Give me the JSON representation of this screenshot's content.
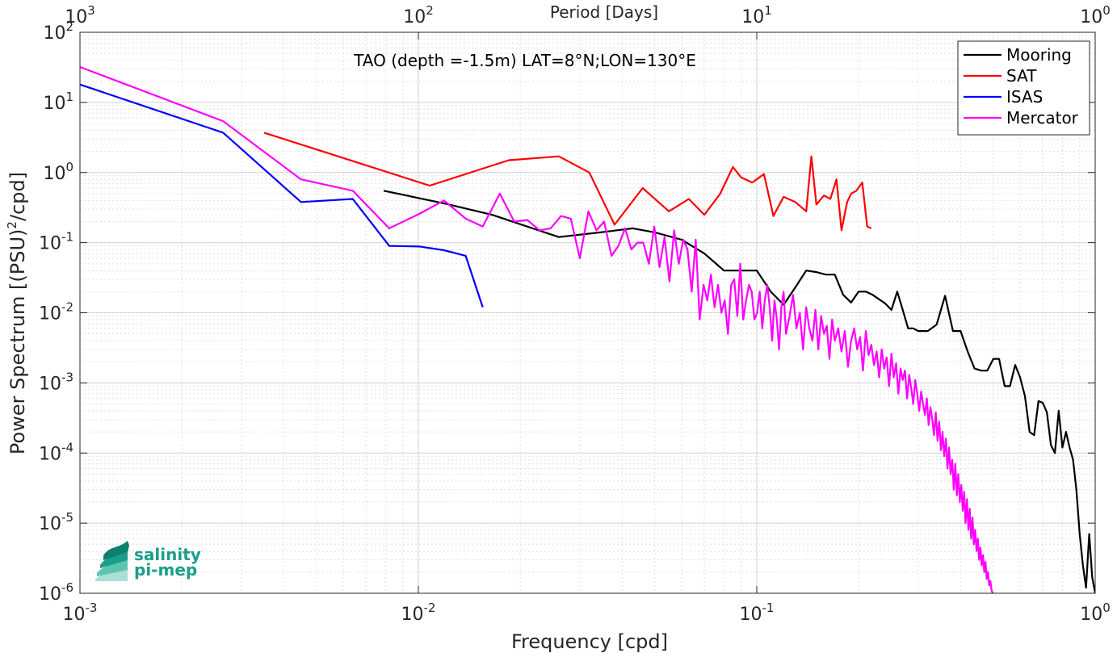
{
  "chart_data": {
    "type": "line",
    "annotation": "TAO (depth =-1.5m) LAT=8°N;LON=130°E",
    "xlabel": "Frequency [cpd]",
    "ylabel": "Power Spectrum [(PSU)²/cpd]",
    "top_xlabel": "Period [Days]",
    "xscale": "log",
    "yscale": "log",
    "xlim": [
      0.001,
      1
    ],
    "ylim": [
      1e-06,
      100
    ],
    "top_xlim": [
      1000,
      1
    ],
    "grid": true,
    "legend_position": "top-right",
    "x_ticks": [
      0.001,
      0.01,
      0.1,
      1
    ],
    "x_tick_labels": [
      {
        "base": "10",
        "exp": "-3"
      },
      {
        "base": "10",
        "exp": "-2"
      },
      {
        "base": "10",
        "exp": "-1"
      },
      {
        "base": "10",
        "exp": "0"
      }
    ],
    "top_ticks": [
      1000,
      100,
      10,
      1
    ],
    "top_tick_labels": [
      {
        "base": "10",
        "exp": "3"
      },
      {
        "base": "10",
        "exp": "2"
      },
      {
        "base": "10",
        "exp": "1"
      },
      {
        "base": "10",
        "exp": "0"
      }
    ],
    "y_ticks": [
      100,
      10,
      1,
      0.1,
      0.01,
      0.001,
      0.0001,
      1e-05,
      1e-06
    ],
    "y_tick_labels": [
      {
        "base": "10",
        "exp": "2"
      },
      {
        "base": "10",
        "exp": "1"
      },
      {
        "base": "10",
        "exp": "0"
      },
      {
        "base": "10",
        "exp": "-1"
      },
      {
        "base": "10",
        "exp": "-2"
      },
      {
        "base": "10",
        "exp": "-3"
      },
      {
        "base": "10",
        "exp": "-4"
      },
      {
        "base": "10",
        "exp": "-5"
      },
      {
        "base": "10",
        "exp": "-6"
      }
    ],
    "series": [
      {
        "name": "Mooring",
        "color": "#000000",
        "x": [
          0.0079,
          0.012,
          0.0165,
          0.026,
          0.0345,
          0.043,
          0.05,
          0.06,
          0.07,
          0.08,
          0.09,
          0.1,
          0.11,
          0.12,
          0.13,
          0.14,
          0.15,
          0.16,
          0.17,
          0.18,
          0.19,
          0.2,
          0.21,
          0.22,
          0.24,
          0.25,
          0.26,
          0.27,
          0.28,
          0.29,
          0.3,
          0.31,
          0.32,
          0.34,
          0.36,
          0.38,
          0.4,
          0.42,
          0.44,
          0.46,
          0.48,
          0.5,
          0.52,
          0.54,
          0.56,
          0.58,
          0.6,
          0.62,
          0.64,
          0.66,
          0.68,
          0.7,
          0.72,
          0.74,
          0.76,
          0.78,
          0.8,
          0.82,
          0.84,
          0.86,
          0.88,
          0.9,
          0.92,
          0.94,
          0.96,
          0.98,
          1.0
        ],
        "values": [
          0.55,
          0.36,
          0.25,
          0.12,
          0.14,
          0.16,
          0.14,
          0.11,
          0.07,
          0.04,
          0.04,
          0.04,
          0.02,
          0.013,
          0.023,
          0.04,
          0.038,
          0.035,
          0.035,
          0.018,
          0.014,
          0.02,
          0.02,
          0.018,
          0.0135,
          0.011,
          0.02,
          0.011,
          0.006,
          0.006,
          0.0055,
          0.0055,
          0.0055,
          0.0068,
          0.0175,
          0.0055,
          0.0055,
          0.0028,
          0.0016,
          0.0015,
          0.0015,
          0.0022,
          0.0022,
          0.0009,
          0.0009,
          0.0018,
          0.0012,
          0.00065,
          0.0002,
          0.00018,
          0.00055,
          0.00052,
          0.00038,
          0.00013,
          0.0001,
          0.0004,
          0.00012,
          0.0002,
          0.00012,
          8e-05,
          3e-05,
          7e-06,
          2.5e-06,
          1.2e-06,
          7e-06,
          1.7e-06,
          1e-06
        ]
      },
      {
        "name": "SAT",
        "color": "#ff0000",
        "x": [
          0.0035,
          0.0108,
          0.0185,
          0.026,
          0.032,
          0.038,
          0.046,
          0.055,
          0.063,
          0.07,
          0.078,
          0.085,
          0.09,
          0.097,
          0.105,
          0.112,
          0.12,
          0.13,
          0.14,
          0.145,
          0.15,
          0.158,
          0.165,
          0.172,
          0.178,
          0.185,
          0.19,
          0.197,
          0.205,
          0.212,
          0.218
        ],
        "values": [
          3.7,
          0.65,
          1.5,
          1.7,
          1.0,
          0.18,
          0.6,
          0.28,
          0.42,
          0.25,
          0.5,
          1.2,
          0.85,
          0.72,
          0.95,
          0.24,
          0.45,
          0.38,
          0.28,
          1.7,
          0.35,
          0.47,
          0.42,
          0.8,
          0.15,
          0.38,
          0.5,
          0.55,
          0.72,
          0.17,
          0.16
        ]
      },
      {
        "name": "ISAS",
        "color": "#0000ff",
        "x": [
          0.001,
          0.00265,
          0.0045,
          0.0064,
          0.0082,
          0.0101,
          0.0119,
          0.0138,
          0.0155
        ],
        "values": [
          18,
          3.7,
          0.38,
          0.42,
          0.09,
          0.088,
          0.078,
          0.065,
          0.012
        ]
      },
      {
        "name": "Mercator",
        "color": "#ff00ff",
        "x": [
          0.001,
          0.00265,
          0.0045,
          0.0064,
          0.0082,
          0.0101,
          0.0119,
          0.0138,
          0.0155,
          0.0174,
          0.0192,
          0.021,
          0.0228,
          0.0246,
          0.0264,
          0.0282,
          0.03,
          0.0318,
          0.0336,
          0.0354,
          0.0372,
          0.039,
          0.0408,
          0.0426,
          0.0444,
          0.0462,
          0.048,
          0.0498,
          0.0516,
          0.0534,
          0.0552,
          0.057,
          0.0588,
          0.0606,
          0.0624,
          0.0642,
          0.066,
          0.0678,
          0.0696,
          0.0714,
          0.0732,
          0.075,
          0.0768,
          0.0786,
          0.0804,
          0.0822,
          0.084,
          0.0858,
          0.0876,
          0.0894,
          0.0912,
          0.093,
          0.0948,
          0.0966,
          0.0984,
          0.1002,
          0.102,
          0.1038,
          0.1056,
          0.1074,
          0.1092,
          0.111,
          0.1128,
          0.1146,
          0.1164,
          0.1182,
          0.12,
          0.122,
          0.125,
          0.128,
          0.131,
          0.134,
          0.137,
          0.14,
          0.143,
          0.146,
          0.149,
          0.152,
          0.155,
          0.158,
          0.161,
          0.164,
          0.167,
          0.17,
          0.174,
          0.178,
          0.182,
          0.186,
          0.19,
          0.194,
          0.198,
          0.202,
          0.206,
          0.21,
          0.214,
          0.218,
          0.222,
          0.226,
          0.23,
          0.234,
          0.238,
          0.242,
          0.246,
          0.25,
          0.254,
          0.258,
          0.262,
          0.266,
          0.27,
          0.274,
          0.278,
          0.282,
          0.286,
          0.29,
          0.294,
          0.298,
          0.302,
          0.306,
          0.31,
          0.314,
          0.318,
          0.322,
          0.326,
          0.33,
          0.334,
          0.338,
          0.342,
          0.346,
          0.35,
          0.354,
          0.358,
          0.362,
          0.366,
          0.37,
          0.374,
          0.378,
          0.382,
          0.386,
          0.39,
          0.394,
          0.398,
          0.402,
          0.406,
          0.41,
          0.414,
          0.418,
          0.422,
          0.426,
          0.43,
          0.434,
          0.438,
          0.442,
          0.446,
          0.45,
          0.454,
          0.458,
          0.462,
          0.466,
          0.47,
          0.474,
          0.478,
          0.482,
          0.486,
          0.49,
          0.494,
          0.498
        ],
        "values": [
          32,
          5.4,
          0.8,
          0.55,
          0.16,
          0.26,
          0.4,
          0.22,
          0.17,
          0.5,
          0.2,
          0.21,
          0.15,
          0.16,
          0.24,
          0.22,
          0.06,
          0.28,
          0.15,
          0.2,
          0.065,
          0.09,
          0.16,
          0.08,
          0.1,
          0.1,
          0.05,
          0.17,
          0.045,
          0.12,
          0.028,
          0.15,
          0.05,
          0.11,
          0.08,
          0.02,
          0.11,
          0.008,
          0.025,
          0.015,
          0.035,
          0.012,
          0.025,
          0.01,
          0.015,
          0.005,
          0.025,
          0.03,
          0.009,
          0.05,
          0.008,
          0.015,
          0.025,
          0.02,
          0.008,
          0.01,
          0.02,
          0.006,
          0.015,
          0.025,
          0.012,
          0.004,
          0.015,
          0.008,
          0.003,
          0.012,
          0.02,
          0.005,
          0.009,
          0.018,
          0.006,
          0.01,
          0.003,
          0.012,
          0.006,
          0.004,
          0.011,
          0.003,
          0.009,
          0.005,
          0.0065,
          0.0022,
          0.008,
          0.004,
          0.006,
          0.0028,
          0.0055,
          0.0017,
          0.004,
          0.006,
          0.003,
          0.0045,
          0.0015,
          0.0055,
          0.0025,
          0.0035,
          0.0018,
          0.0028,
          0.0012,
          0.003,
          0.0016,
          0.0023,
          0.0009,
          0.0026,
          0.0012,
          0.0019,
          0.0007,
          0.0016,
          0.0011,
          0.0015,
          0.0006,
          0.0013,
          0.00085,
          0.0005,
          0.0011,
          0.0007,
          0.0004,
          0.00075,
          0.0005,
          0.00035,
          0.0006,
          0.00025,
          0.00045,
          0.0003,
          0.00018,
          0.00038,
          0.00015,
          0.00028,
          0.00011,
          0.0002,
          9e-05,
          0.00016,
          6e-05,
          0.00012,
          5e-05,
          8e-05,
          3e-05,
          7e-05,
          2.5e-05,
          5e-05,
          2e-05,
          3.5e-05,
          1.5e-05,
          2.8e-05,
          1e-05,
          2.2e-05,
          8e-06,
          1.6e-05,
          6e-06,
          1.2e-05,
          5e-06,
          8e-06,
          4e-06,
          6e-06,
          3e-06,
          4.5e-06,
          2.5e-06,
          3.5e-06,
          2e-06,
          2.8e-06,
          1.6e-06,
          2e-06,
          1.3e-06,
          1.5e-06,
          1.1e-06,
          1e-06
        ]
      }
    ]
  },
  "logo": {
    "line1": "salinity",
    "line2": "pi-mep",
    "colors": [
      "#0e7f6e",
      "#1a9e8a",
      "#5cc4b0",
      "#a8e0d4"
    ]
  }
}
